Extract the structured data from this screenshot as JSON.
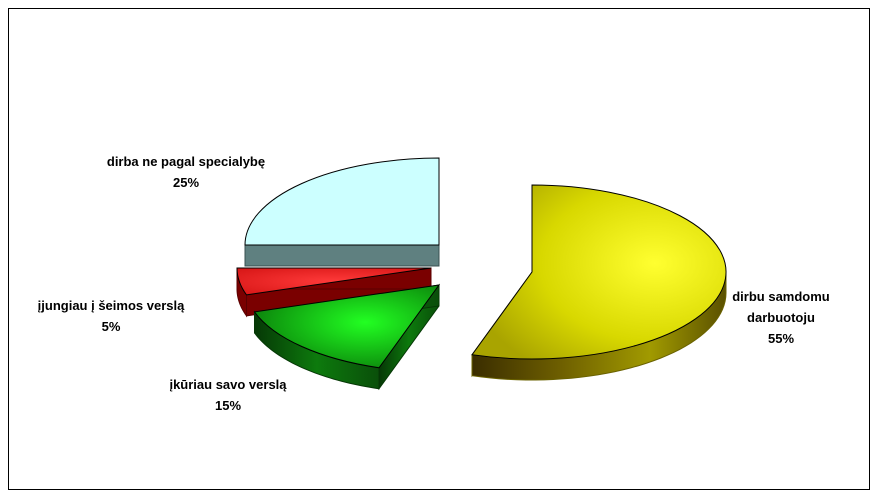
{
  "chart_data": {
    "type": "pie",
    "title": "",
    "style": "3d-exploded",
    "slices": [
      {
        "name": "dirbu samdomu darbuotoju",
        "value": 55,
        "label_lines": [
          "dirbu samdomu",
          "darbuotoju"
        ],
        "pct_label": "55%",
        "color": "#e0e000"
      },
      {
        "name": "įkūriau savo verslą",
        "value": 15,
        "label_lines": [
          "įkūriau savo verslą"
        ],
        "pct_label": "15%",
        "color": "#109010"
      },
      {
        "name": "įjungiau į šeimos verslą",
        "value": 5,
        "label_lines": [
          "įjungiau į šeimos verslą"
        ],
        "pct_label": "5%",
        "color": "#ee1010"
      },
      {
        "name": "dirba ne pagal specialybę",
        "value": 25,
        "label_lines": [
          "dirba ne pagal specialybę"
        ],
        "pct_label": "25%",
        "color": "#ccffff"
      }
    ]
  }
}
